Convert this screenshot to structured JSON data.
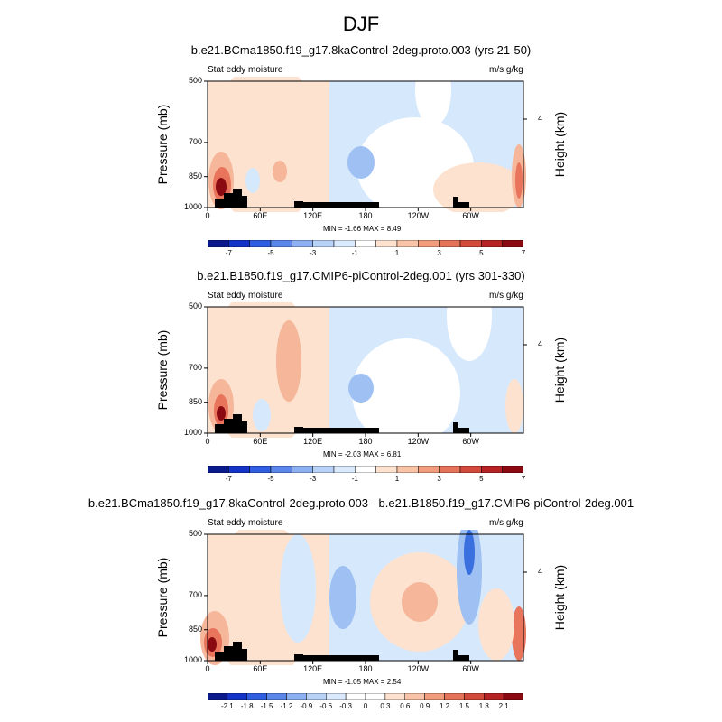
{
  "title": "DJF",
  "colors": {
    "blue_dark": "#0a1a8c",
    "blue_mid": "#3a6fe0",
    "blue_light": "#9ec0f2",
    "blue_pale": "#d6e8fb",
    "white": "#ffffff",
    "red_pale": "#fde2d0",
    "red_light": "#f6b69a",
    "red_mid": "#e8745c",
    "red_dark": "#8b0a12",
    "terrain": "#000000"
  },
  "chart_data": [
    {
      "type": "heatmap",
      "title": "b.e21.BCma1850.f19_g17.8kaControl-2deg.proto.003 (yrs 21-50)",
      "left_label": "Stat eddy moisture",
      "right_label": "m/s g/kg",
      "ylabel": "Pressure (mb)",
      "ylabel_right": "Height (km)",
      "x_ticks": [
        "0",
        "60E",
        "120E",
        "180",
        "120W",
        "60W"
      ],
      "y_ticks": [
        "500",
        "700",
        "850",
        "1000"
      ],
      "right_ticks": [
        "4"
      ],
      "min": "-1.66",
      "max": "8.49",
      "minmax_text": "MIN =  -1.66  MAX =   8.49",
      "colorbar_labels": [
        "-7",
        "-5",
        "-3",
        "-1",
        "1",
        "3",
        "5",
        "7"
      ]
    },
    {
      "type": "heatmap",
      "title": "b.e21.B1850.f19_g17.CMIP6-piControl-2deg.001 (yrs 301-330)",
      "left_label": "Stat eddy moisture",
      "right_label": "m/s g/kg",
      "ylabel": "Pressure (mb)",
      "ylabel_right": "Height (km)",
      "x_ticks": [
        "0",
        "60E",
        "120E",
        "180",
        "120W",
        "60W"
      ],
      "y_ticks": [
        "500",
        "700",
        "850",
        "1000"
      ],
      "right_ticks": [
        "4"
      ],
      "min": "-2.03",
      "max": "6.81",
      "minmax_text": "MIN =  -2.03  MAX =   6.81",
      "colorbar_labels": [
        "-7",
        "-5",
        "-3",
        "-1",
        "1",
        "3",
        "5",
        "7"
      ]
    },
    {
      "type": "heatmap",
      "title": "b.e21.BCma1850.f19_g17.8kaControl-2deg.proto.003 - b.e21.B1850.f19_g17.CMIP6-piControl-2deg.001",
      "left_label": "Stat eddy moisture",
      "right_label": "m/s g/kg",
      "ylabel": "Pressure (mb)",
      "ylabel_right": "Height (km)",
      "x_ticks": [
        "0",
        "60E",
        "120E",
        "180",
        "120W",
        "60W"
      ],
      "y_ticks": [
        "500",
        "700",
        "850",
        "1000"
      ],
      "right_ticks": [
        "4"
      ],
      "min": "-1.05",
      "max": "2.54",
      "minmax_text": "MIN =  -1.05  MAX =   2.54",
      "colorbar_labels": [
        "-2.1",
        "-1.8",
        "-1.5",
        "-1.2",
        "-0.9",
        "-0.6",
        "-0.3",
        "0",
        "0.3",
        "0.6",
        "0.9",
        "1.2",
        "1.5",
        "1.8",
        "2.1"
      ]
    }
  ]
}
